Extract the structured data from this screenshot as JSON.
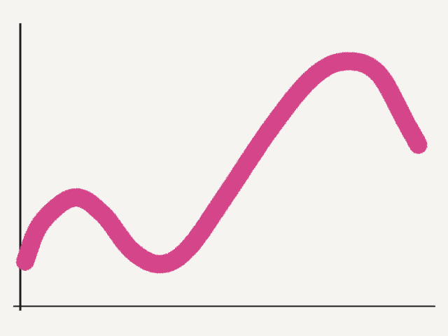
{
  "colors": {
    "background": "#f6f4f1",
    "axis": "#1f1f1f",
    "line": "#d4458a"
  },
  "chart_data": {
    "type": "line",
    "title": "",
    "xlabel": "",
    "ylabel": "",
    "xlim": [
      0,
      100
    ],
    "ylim": [
      0,
      100
    ],
    "grid": false,
    "legend": "none",
    "series": [
      {
        "values": [
          {
            "x": 1,
            "y": 16
          },
          {
            "x": 5,
            "y": 30
          },
          {
            "x": 13,
            "y": 39
          },
          {
            "x": 20,
            "y": 33
          },
          {
            "x": 27,
            "y": 20
          },
          {
            "x": 34,
            "y": 15
          },
          {
            "x": 41,
            "y": 21
          },
          {
            "x": 51,
            "y": 42
          },
          {
            "x": 61,
            "y": 64
          },
          {
            "x": 71,
            "y": 82
          },
          {
            "x": 79,
            "y": 88
          },
          {
            "x": 87,
            "y": 84
          },
          {
            "x": 94,
            "y": 66
          },
          {
            "x": 97,
            "y": 58
          }
        ]
      }
    ]
  }
}
